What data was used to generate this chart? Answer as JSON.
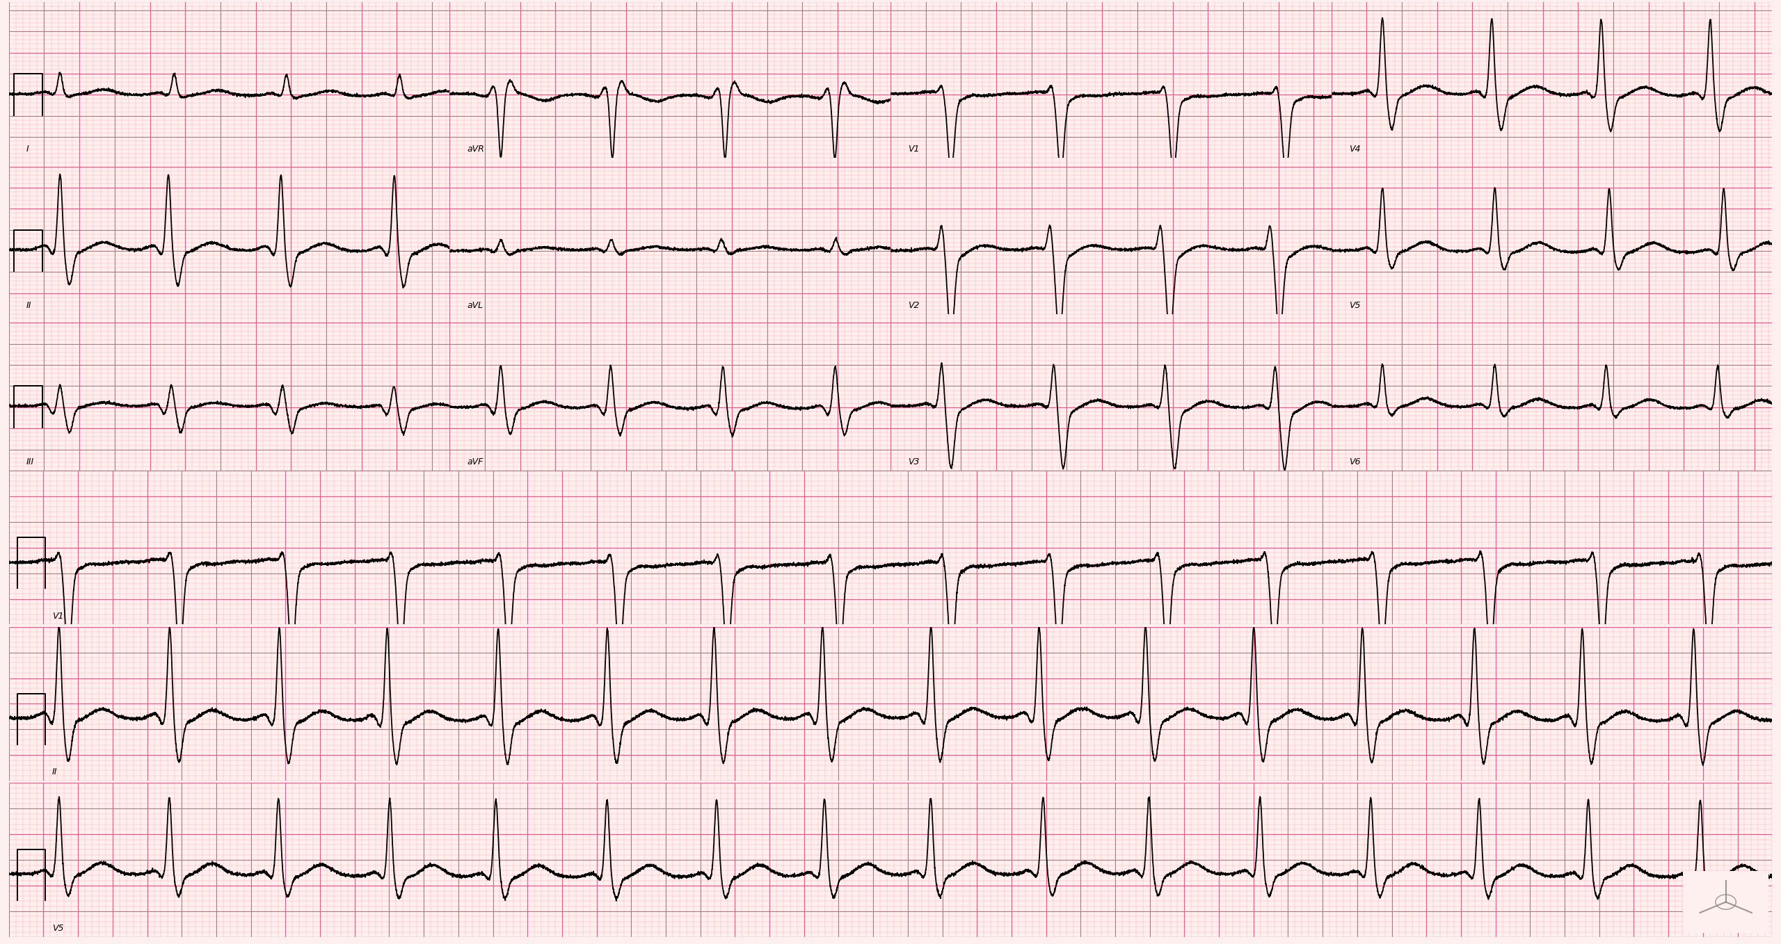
{
  "bg_color": "#ffffff",
  "paper_color": "#fff0f0",
  "grid_minor_color": "#ffb0b0",
  "grid_major_color": "#e06080",
  "ecg_color": "#000000",
  "ecg_linewidth": 1.3,
  "fig_width": 25.6,
  "fig_height": 13.58,
  "dpi": 100,
  "hr": 95,
  "qrs_dur": 0.14,
  "label_fontsize": 9,
  "leads_row0": [
    "I",
    "aVR",
    "V1",
    "V4"
  ],
  "leads_row1": [
    "II",
    "aVL",
    "V2",
    "V5"
  ],
  "leads_row2": [
    "III",
    "aVF",
    "V3",
    "V6"
  ],
  "leads_long": [
    "V1",
    "II",
    "V5"
  ],
  "short_duration": 2.5,
  "long_duration": 10.2,
  "ylim_short": [
    -1.5,
    2.2
  ],
  "ylim_long": [
    -1.2,
    1.8
  ],
  "lead_configs": {
    "I": {
      "p": 0.06,
      "r": 0.5,
      "s": -0.05,
      "t": 0.12,
      "q": -0.03,
      "baseline": 0.0
    },
    "II": {
      "p": 0.1,
      "r": 1.8,
      "s": -0.8,
      "t": 0.18,
      "q": -0.15,
      "baseline": 0.0
    },
    "III": {
      "p": 0.05,
      "r": 0.5,
      "s": -0.6,
      "t": 0.08,
      "q": -0.2,
      "baseline": 0.0
    },
    "aVR": {
      "p": -0.06,
      "r": -1.5,
      "s": 0.3,
      "t": -0.15,
      "q": 0.2,
      "baseline": 0.0
    },
    "aVL": {
      "p": 0.03,
      "r": 0.25,
      "s": -0.1,
      "t": 0.07,
      "q": -0.05,
      "baseline": 0.0
    },
    "aVF": {
      "p": 0.07,
      "r": 1.0,
      "s": -0.6,
      "t": 0.14,
      "q": -0.18,
      "baseline": 0.0
    },
    "V1": {
      "p": 0.04,
      "r": 0.2,
      "s": -1.8,
      "t": -0.05,
      "q": 0.02,
      "baseline": 0.0
    },
    "V2": {
      "p": 0.05,
      "r": 0.6,
      "s": -2.0,
      "t": 0.1,
      "q": 0.0,
      "baseline": 0.0
    },
    "V3": {
      "p": 0.06,
      "r": 1.0,
      "s": -1.4,
      "t": 0.15,
      "q": -0.05,
      "baseline": 0.0
    },
    "V4": {
      "p": 0.07,
      "r": 1.8,
      "s": -0.8,
      "t": 0.2,
      "q": -0.1,
      "baseline": 0.0
    },
    "V5": {
      "p": 0.07,
      "r": 1.5,
      "s": -0.4,
      "t": 0.22,
      "q": -0.08,
      "baseline": 0.0
    },
    "V6": {
      "p": 0.07,
      "r": 1.0,
      "s": -0.2,
      "t": 0.2,
      "q": -0.06,
      "baseline": 0.0
    }
  }
}
